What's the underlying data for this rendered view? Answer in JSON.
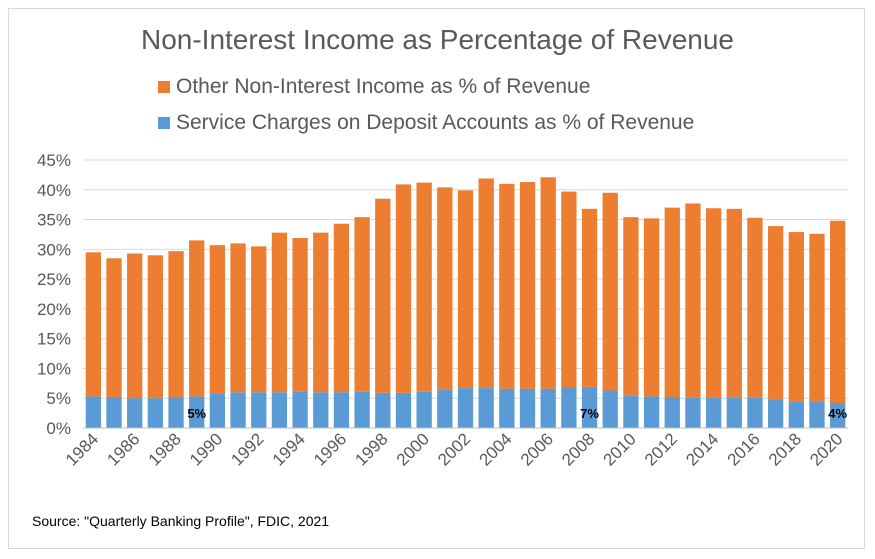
{
  "chart_data": {
    "type": "bar",
    "stacked": true,
    "title": "Non-Interest Income as Percentage of Revenue",
    "categories": [
      "1984",
      "1985",
      "1986",
      "1987",
      "1988",
      "1989",
      "1990",
      "1991",
      "1992",
      "1993",
      "1994",
      "1995",
      "1996",
      "1997",
      "1998",
      "1999",
      "2000",
      "2001",
      "2002",
      "2003",
      "2004",
      "2005",
      "2006",
      "2007",
      "2008",
      "2009",
      "2010",
      "2011",
      "2012",
      "2013",
      "2014",
      "2015",
      "2016",
      "2017",
      "2018",
      "2019",
      "2020"
    ],
    "xtick_labels": [
      "1984",
      "1986",
      "1988",
      "1990",
      "1992",
      "1994",
      "1996",
      "1998",
      "2000",
      "2002",
      "2004",
      "2006",
      "2008",
      "2010",
      "2012",
      "2014",
      "2016",
      "2018",
      "2020"
    ],
    "series": [
      {
        "name": "Service Charges on Deposit Accounts as % of Revenue",
        "color": "#5b9bd5",
        "values": [
          5.3,
          5.2,
          5.0,
          5.0,
          5.2,
          5.3,
          5.7,
          6.0,
          6.0,
          6.0,
          6.1,
          6.0,
          6.0,
          6.1,
          5.9,
          5.9,
          6.1,
          6.4,
          6.7,
          6.7,
          6.6,
          6.6,
          6.6,
          6.8,
          6.9,
          6.3,
          5.5,
          5.3,
          5.2,
          5.1,
          5.1,
          5.1,
          5.1,
          4.8,
          4.5,
          4.5,
          4.2
        ]
      },
      {
        "name": "Other Non-Interest Income as % of Revenue",
        "color": "#ed7d31",
        "values": [
          24.2,
          23.3,
          24.3,
          24.0,
          24.5,
          26.2,
          25.0,
          25.0,
          24.5,
          26.8,
          25.8,
          26.8,
          28.3,
          29.3,
          32.6,
          35.0,
          35.1,
          34.0,
          33.2,
          35.2,
          34.4,
          34.7,
          35.5,
          32.9,
          29.9,
          33.2,
          29.9,
          29.9,
          31.8,
          32.6,
          31.8,
          31.7,
          30.2,
          29.1,
          28.4,
          28.1,
          30.6
        ]
      }
    ],
    "legend": [
      "Other Non-Interest Income as % of Revenue",
      "Service Charges on Deposit Accounts as % of Revenue"
    ],
    "ylim": [
      0,
      45
    ],
    "yticks": [
      0,
      5,
      10,
      15,
      20,
      25,
      30,
      35,
      40,
      45
    ],
    "ytick_labels": [
      "0%",
      "5%",
      "10%",
      "15%",
      "20%",
      "25%",
      "30%",
      "35%",
      "40%",
      "45%"
    ],
    "grid": true,
    "legend_position": "top",
    "annotations": [
      {
        "category": "1989",
        "value": 5,
        "text": "5%"
      },
      {
        "category": "2008",
        "value": 7,
        "text": "7%"
      },
      {
        "category": "2020",
        "value": 4,
        "text": "4%"
      }
    ],
    "xlabel": "",
    "ylabel": ""
  },
  "source": "Source: \"Quarterly Banking Profile\", FDIC, 2021"
}
